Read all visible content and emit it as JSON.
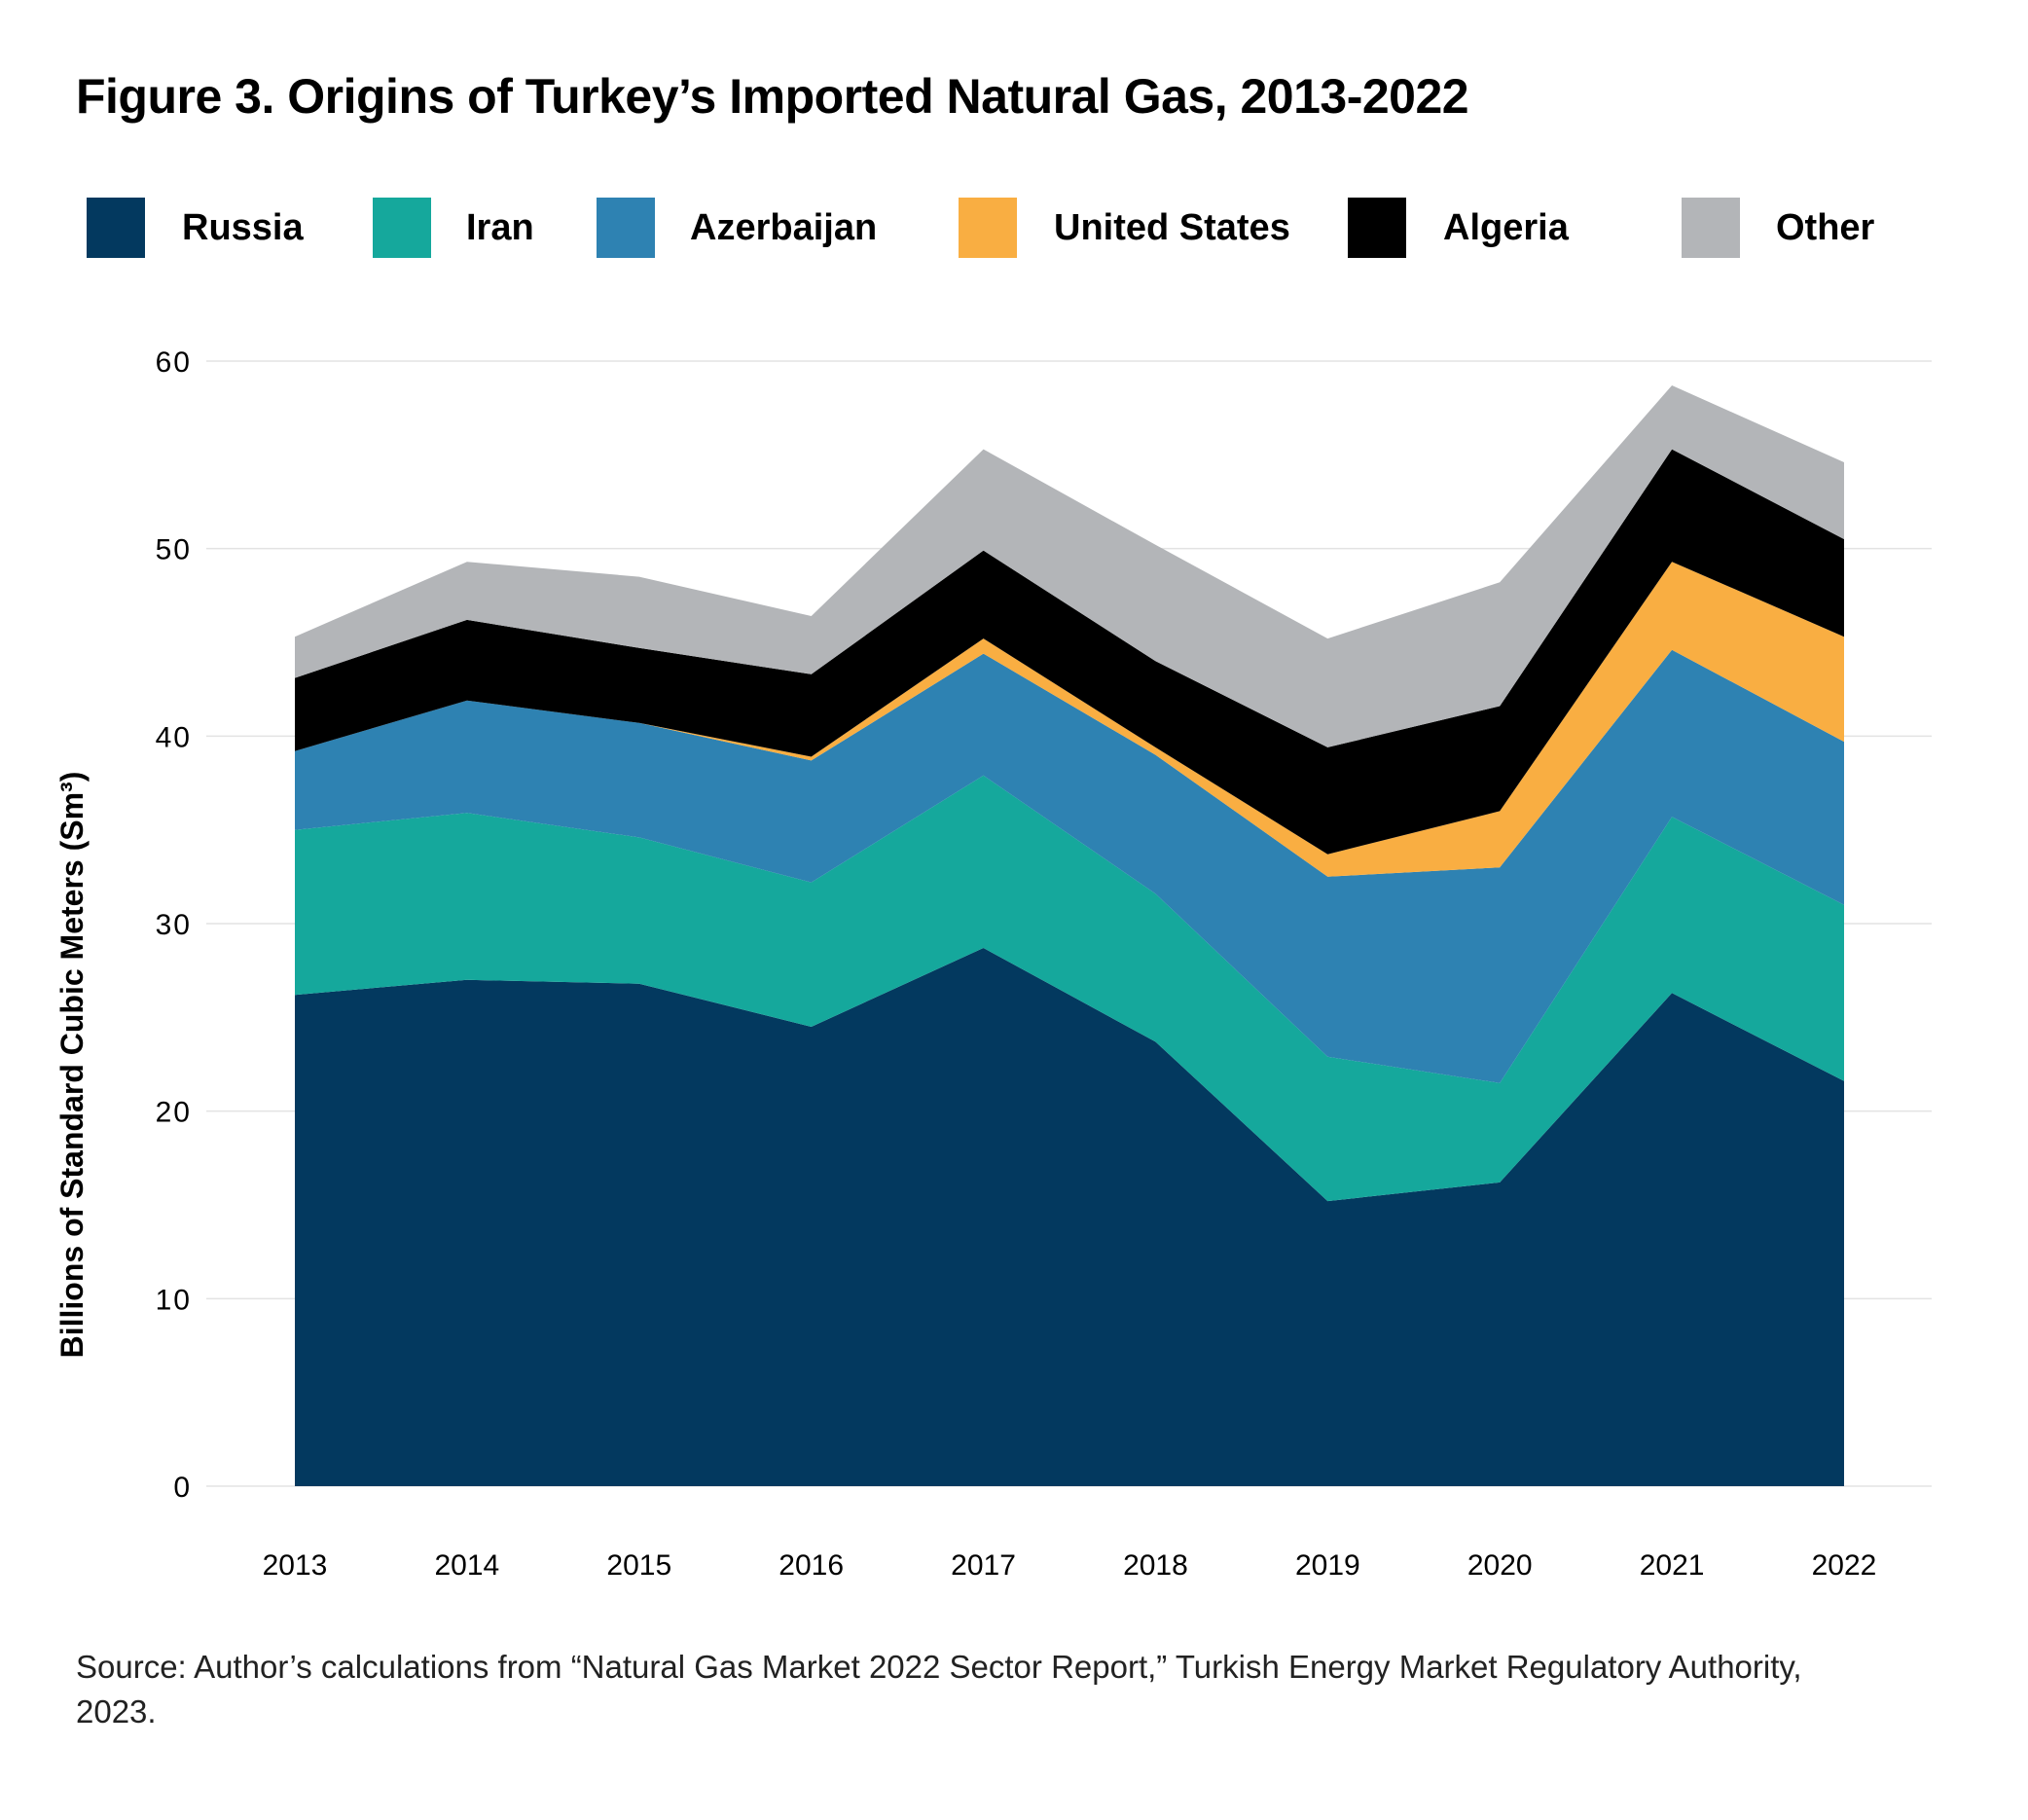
{
  "title": "Figure 3. Origins of Turkey’s Imported Natural Gas, 2013-2022",
  "source": "Source: Author’s calculations from “Natural Gas Market 2022 Sector Report,” Turkish Energy Market Regulatory Authority, 2023.",
  "chart_data": {
    "type": "area",
    "stacked": true,
    "title": "Figure 3. Origins of Turkey’s Imported Natural Gas, 2013-2022",
    "xlabel": "",
    "ylabel": "Billions of Standard Cubic Meters (Sm³)",
    "ylim": [
      0,
      60
    ],
    "yticks": [
      "0",
      "10",
      "20",
      "30",
      "40",
      "50",
      "60"
    ],
    "grid": true,
    "legend_position": "top",
    "x": [
      "2013",
      "2014",
      "2015",
      "2016",
      "2017",
      "2018",
      "2019",
      "2020",
      "2021",
      "2022"
    ],
    "series": [
      {
        "name": "Russia",
        "color": "#03395f",
        "values": [
          26.2,
          27.0,
          26.8,
          24.5,
          28.7,
          23.7,
          15.2,
          16.2,
          26.3,
          21.6
        ]
      },
      {
        "name": "Iran",
        "color": "#15a89c",
        "values": [
          8.8,
          8.9,
          7.8,
          7.7,
          9.2,
          7.9,
          7.7,
          5.3,
          9.4,
          9.4
        ]
      },
      {
        "name": "Azerbaijan",
        "color": "#2e82b2",
        "values": [
          4.2,
          6.0,
          6.1,
          6.5,
          6.5,
          7.4,
          9.6,
          11.5,
          8.9,
          8.7
        ]
      },
      {
        "name": "United States",
        "color": "#f9ae42",
        "values": [
          0.0,
          0.0,
          0.0,
          0.2,
          0.8,
          0.4,
          1.2,
          3.0,
          4.7,
          5.6
        ]
      },
      {
        "name": "Algeria",
        "color": "#000000",
        "values": [
          3.9,
          4.3,
          4.0,
          4.4,
          4.7,
          4.6,
          5.7,
          5.6,
          6.0,
          5.2
        ]
      },
      {
        "name": "Other",
        "color": "#b3b5b8",
        "values": [
          2.2,
          3.1,
          3.8,
          3.1,
          5.4,
          6.2,
          5.8,
          6.6,
          3.4,
          4.1
        ]
      }
    ]
  }
}
